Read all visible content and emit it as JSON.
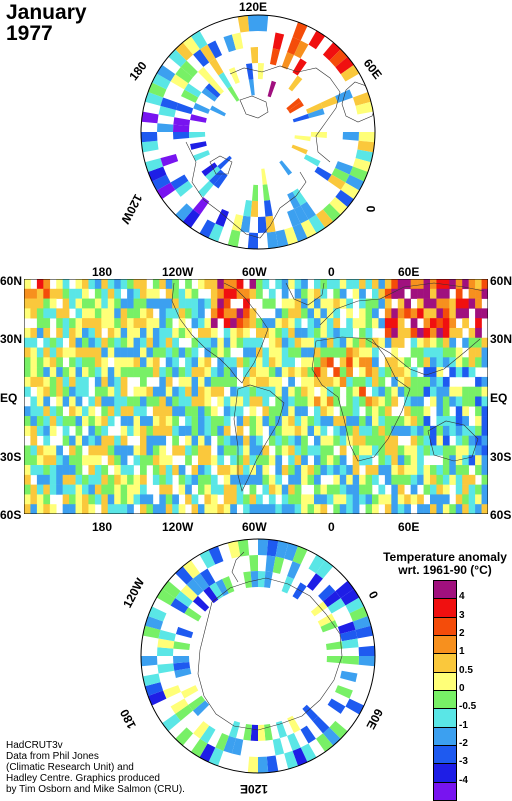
{
  "title": {
    "month": "January",
    "year": "1977"
  },
  "map_labels": {
    "north_polar": {
      "top": "120E",
      "upper_left": "180",
      "upper_right": "60E",
      "right": "0",
      "left": "120W"
    },
    "main_top": [
      "180",
      "120W",
      "60W",
      "0",
      "60E"
    ],
    "main_bottom": [
      "180",
      "120W",
      "60W",
      "0",
      "60E"
    ],
    "main_lat": [
      "60N",
      "30N",
      "EQ",
      "30S",
      "60S"
    ],
    "south_polar": {
      "upper_left": "120W",
      "upper_right": "0",
      "lower_left": "180",
      "lower_right": "60E",
      "bottom": "120E"
    }
  },
  "legend": {
    "title_line1": "Temperature anomaly",
    "title_line2": "wrt. 1961-90  (°C)",
    "colors": [
      "#A0107E",
      "#F01010",
      "#F44C0A",
      "#F7901E",
      "#FAC83C",
      "#FFFF78",
      "#78F066",
      "#5AE6E6",
      "#3CA0F0",
      "#1E5AF0",
      "#1E1EE6",
      "#7814F0"
    ],
    "ticks": [
      "4",
      "3",
      "2",
      "1",
      "0.5",
      "0",
      "-0.5",
      "-1",
      "-2",
      "-3",
      "-4"
    ]
  },
  "credit": [
    "HadCRUT3v",
    "Data from Phil Jones",
    "(Climatic Research Unit) and",
    "Hadley Centre.  Graphics produced",
    "by Tim Osborn and Mike Salmon (CRU)."
  ]
}
